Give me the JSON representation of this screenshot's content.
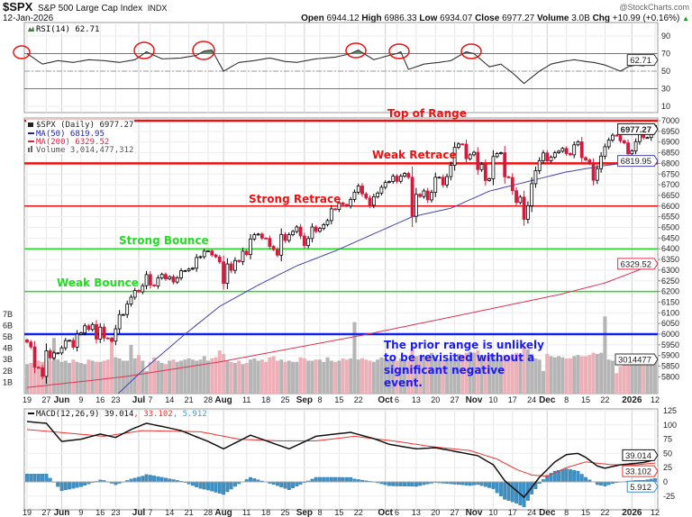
{
  "header": {
    "symbol": "$SPX",
    "name": "S&P 500 Large Cap Index",
    "exchange": "INDX",
    "copyright": "@StockCharts.com",
    "date": "12-Jan-2026",
    "open_label": "Open",
    "open": "6944.12",
    "high_label": "High",
    "high": "6986.33",
    "low_label": "Low",
    "low": "6934.07",
    "close_label": "Close",
    "close": "6977.27",
    "volume_label": "Volume",
    "volume": "3.0B",
    "chg_label": "Chg",
    "chg": "+10.99 (+0.16%)",
    "chg_arrow": "▲"
  },
  "legend": {
    "rsi": "RSI(14) 62.71",
    "price": "$SPX (Daily) 6977.27",
    "ma50": "MA(50) 6819.95",
    "ma200": "MA(200) 6329.52",
    "volume": "Volume 3,014,477,312",
    "macd_name": "MACD(12,26,9) 39.014",
    "macd_signal": ", 33.102",
    "macd_hist": ", 5.912"
  },
  "tags": {
    "rsi": "62.71",
    "price": "6977.27",
    "ma50": "6819.95",
    "ma200": "6329.52",
    "volume": "3014477",
    "macd": "39.014",
    "signal": "33.102",
    "hist": "5.912"
  },
  "levels": [
    {
      "label": "Top of Range",
      "value": 7000,
      "color": "#ee1111"
    },
    {
      "label": "Weak Retrace",
      "value": 6800,
      "color": "#ee1111"
    },
    {
      "label": "Strong Retrace",
      "value": 6600,
      "color": "#ee1111"
    },
    {
      "label": "Strong Bounce",
      "value": 6400,
      "color": "#22dd22"
    },
    {
      "label": "Weak Bounce",
      "value": 6200,
      "color": "#22dd22"
    },
    {
      "label": "",
      "value": 6000,
      "color": "#1122ee"
    }
  ],
  "note_lines": [
    "The prior range is unlikely",
    "to be revisited without a",
    "significant negative",
    "event."
  ],
  "colors": {
    "up": "#000000",
    "down": "#d6183c",
    "ma50": "#4444aa",
    "ma200": "#dd3355",
    "vol_up": "#b5b5b5",
    "vol_down": "#eeb0b8",
    "macd": "#111111",
    "signal": "#ee3333",
    "hist": "#3d8fc4",
    "rsi_fill": "#4a7a4a"
  },
  "chart_data": [
    {
      "type": "candlestick",
      "panel": "price",
      "ylim": [
        5775,
        7025
      ],
      "y_ticks": [
        5800,
        5850,
        5900,
        5950,
        6000,
        6050,
        6100,
        6150,
        6200,
        6250,
        6300,
        6350,
        6400,
        6450,
        6500,
        6550,
        6600,
        6650,
        6700,
        6750,
        6800,
        6850,
        6900,
        6950,
        7000
      ],
      "x_ticks": [
        {
          "label": "19",
          "day": 0
        },
        {
          "label": "27",
          "day": 5
        },
        {
          "label": "Jun",
          "day": 9,
          "bold": true
        },
        {
          "label": "9",
          "day": 14
        },
        {
          "label": "16",
          "day": 19
        },
        {
          "label": "23",
          "day": 23
        },
        {
          "label": "Jul",
          "day": 29,
          "bold": true
        },
        {
          "label": "7",
          "day": 32
        },
        {
          "label": "14",
          "day": 37
        },
        {
          "label": "21",
          "day": 42
        },
        {
          "label": "28",
          "day": 47
        },
        {
          "label": "Aug",
          "day": 51,
          "bold": true
        },
        {
          "label": "11",
          "day": 57
        },
        {
          "label": "18",
          "day": 62
        },
        {
          "label": "25",
          "day": 67
        },
        {
          "label": "Sep",
          "day": 72,
          "bold": true
        },
        {
          "label": "8",
          "day": 76
        },
        {
          "label": "15",
          "day": 81
        },
        {
          "label": "22",
          "day": 86
        },
        {
          "label": "Oct",
          "day": 93,
          "bold": true
        },
        {
          "label": "6",
          "day": 96
        },
        {
          "label": "13",
          "day": 101
        },
        {
          "label": "20",
          "day": 106
        },
        {
          "label": "27",
          "day": 111
        },
        {
          "label": "Nov",
          "day": 116,
          "bold": true
        },
        {
          "label": "10",
          "day": 121
        },
        {
          "label": "17",
          "day": 126
        },
        {
          "label": "24",
          "day": 131
        },
        {
          "label": "Dec",
          "day": 135,
          "bold": true
        },
        {
          "label": "8",
          "day": 140
        },
        {
          "label": "15",
          "day": 145
        },
        {
          "label": "22",
          "day": 150
        },
        {
          "label": "2026",
          "day": 157,
          "bold": true
        },
        {
          "label": "12",
          "day": 163
        }
      ],
      "close": [
        5963,
        5940,
        5845,
        5842,
        5802,
        5922,
        5889,
        5912,
        5912,
        5936,
        5970,
        5971,
        5939,
        6000,
        6006,
        6039,
        6022,
        6045,
        5977,
        6033,
        5982,
        5981,
        5967,
        6025,
        6092,
        6092,
        6141,
        6173,
        6205,
        6198,
        6227,
        6279,
        6230,
        6226,
        6263,
        6280,
        6259,
        6269,
        6244,
        6264,
        6297,
        6297,
        6305,
        6309,
        6359,
        6363,
        6389,
        6390,
        6371,
        6362,
        6339,
        6238,
        6329,
        6299,
        6345,
        6340,
        6389,
        6373,
        6446,
        6466,
        6469,
        6450,
        6449,
        6411,
        6396,
        6370,
        6467,
        6439,
        6466,
        6481,
        6502,
        6460,
        6415,
        6448,
        6502,
        6482,
        6495,
        6513,
        6532,
        6587,
        6584,
        6615,
        6607,
        6600,
        6631,
        6665,
        6694,
        6657,
        6638,
        6604,
        6644,
        6661,
        6688,
        6711,
        6715,
        6740,
        6716,
        6740,
        6753,
        6735,
        6552,
        6655,
        6645,
        6671,
        6629,
        6664,
        6735,
        6735,
        6699,
        6738,
        6791,
        6875,
        6891,
        6890,
        6822,
        6840,
        6852,
        6771,
        6796,
        6720,
        6728,
        6832,
        6846,
        6850,
        6737,
        6734,
        6672,
        6617,
        6642,
        6538,
        6602,
        6705,
        6766,
        6813,
        6849,
        6812,
        6829,
        6850,
        6857,
        6870,
        6846,
        6840,
        6887,
        6901,
        6827,
        6816,
        6800,
        6721,
        6775,
        6834,
        6878,
        6909,
        6932,
        6930,
        6906,
        6896,
        6845,
        6858,
        6902,
        6944,
        6921,
        6921,
        6966,
        6977.27
      ],
      "ma50": [
        [
          23,
          5710
        ],
        [
          30,
          5830
        ],
        [
          41,
          6000
        ],
        [
          50,
          6130
        ],
        [
          60,
          6230
        ],
        [
          70,
          6320
        ],
        [
          80,
          6390
        ],
        [
          90,
          6470
        ],
        [
          100,
          6550
        ],
        [
          110,
          6590
        ],
        [
          120,
          6670
        ],
        [
          130,
          6715
        ],
        [
          140,
          6760
        ],
        [
          150,
          6790
        ],
        [
          163,
          6819.95
        ]
      ],
      "ma200": [
        [
          0,
          5750
        ],
        [
          25,
          5800
        ],
        [
          50,
          5870
        ],
        [
          87,
          5995
        ],
        [
          110,
          6080
        ],
        [
          138,
          6185
        ],
        [
          150,
          6240
        ],
        [
          163,
          6329.52
        ]
      ]
    },
    {
      "type": "bar",
      "panel": "volume",
      "unit": "B",
      "y_ticks": [
        "1B",
        "2B",
        "3B",
        "4B",
        "5B",
        "6B",
        "7B"
      ],
      "values": [
        2.6,
        2.7,
        3.0,
        2.9,
        2.8,
        3.1,
        2.9,
        4.9,
        3.0,
        2.8,
        2.9,
        2.7,
        3.0,
        2.8,
        2.7,
        2.6,
        3.0,
        2.9,
        2.8,
        2.8,
        2.9,
        3.0,
        4.8,
        3.2,
        3.1,
        2.9,
        2.9,
        4.3,
        3.1,
        3.4,
        2.9,
        2.0,
        2.8,
        3.2,
        2.9,
        2.7,
        2.6,
        2.9,
        3.0,
        2.8,
        2.9,
        3.0,
        3.1,
        3.0,
        2.9,
        3.0,
        3.3,
        2.9,
        3.1,
        3.2,
        3.8,
        3.5,
        2.9,
        2.8,
        2.7,
        2.9,
        2.6,
        2.7,
        3.0,
        3.1,
        2.9,
        3.0,
        2.8,
        3.2,
        3.3,
        2.9,
        3.0,
        2.8,
        2.9,
        2.8,
        2.8,
        3.2,
        3.1,
        2.9,
        2.9,
        3.0,
        3.0,
        2.8,
        3.2,
        2.9,
        2.8,
        2.9,
        3.1,
        3.0,
        3.1,
        6.3,
        3.0,
        3.1,
        3.0,
        2.9,
        2.8,
        3.0,
        3.2,
        3.1,
        3.0,
        3.0,
        2.9,
        3.1,
        3.0,
        2.9,
        4.0,
        3.3,
        3.4,
        3.3,
        3.1,
        3.6,
        3.3,
        3.0,
        2.9,
        3.0,
        3.2,
        3.1,
        3.5,
        3.4,
        3.6,
        3.7,
        3.6,
        3.8,
        3.4,
        3.3,
        3.5,
        3.3,
        3.1,
        3.0,
        3.4,
        3.3,
        3.5,
        3.6,
        3.4,
        4.2,
        3.9,
        3.5,
        3.1,
        3.0,
        2.0,
        3.5,
        3.3,
        3.2,
        3.3,
        3.2,
        3.1,
        3.1,
        3.3,
        3.4,
        3.3,
        3.3,
        3.4,
        3.6,
        3.5,
        3.6,
        6.8,
        3.0,
        2.9,
        1.8,
        2.4,
        2.6,
        2.8,
        3.3,
        3.4,
        3.2,
        3.0,
        3.1,
        3.0,
        3.014
      ]
    },
    {
      "type": "line",
      "panel": "rsi",
      "ylim": [
        0,
        100
      ],
      "y_ticks": [
        10,
        30,
        50,
        70,
        90
      ],
      "ref_lines": [
        30,
        50,
        70
      ],
      "points": [
        [
          0,
          70
        ],
        [
          4,
          58
        ],
        [
          8,
          62
        ],
        [
          12,
          60
        ],
        [
          16,
          63
        ],
        [
          20,
          62
        ],
        [
          24,
          60
        ],
        [
          28,
          63
        ],
        [
          31,
          72
        ],
        [
          35,
          64
        ],
        [
          40,
          65
        ],
        [
          44,
          68
        ],
        [
          46,
          73
        ],
        [
          48,
          74
        ],
        [
          51,
          50
        ],
        [
          55,
          60
        ],
        [
          59,
          62
        ],
        [
          63,
          65
        ],
        [
          67,
          61
        ],
        [
          70,
          60
        ],
        [
          75,
          64
        ],
        [
          80,
          66
        ],
        [
          84,
          70
        ],
        [
          86,
          74
        ],
        [
          90,
          63
        ],
        [
          94,
          68
        ],
        [
          96,
          70
        ],
        [
          97,
          72
        ],
        [
          99,
          52
        ],
        [
          103,
          58
        ],
        [
          107,
          60
        ],
        [
          110,
          62
        ],
        [
          114,
          72
        ],
        [
          116,
          70
        ],
        [
          120,
          55
        ],
        [
          123,
          58
        ],
        [
          126,
          48
        ],
        [
          129,
          36
        ],
        [
          133,
          50
        ],
        [
          136,
          58
        ],
        [
          139,
          61
        ],
        [
          142,
          63
        ],
        [
          145,
          61
        ],
        [
          147,
          60
        ],
        [
          150,
          57
        ],
        [
          154,
          50
        ],
        [
          156,
          55
        ],
        [
          158,
          57
        ],
        [
          160,
          56
        ],
        [
          163,
          62.71
        ]
      ]
    },
    {
      "type": "line",
      "panel": "macd",
      "ylim": [
        -40,
        135
      ],
      "y_ticks": [
        -25,
        0,
        25,
        50,
        75,
        100,
        125
      ],
      "macd": [
        [
          0,
          106
        ],
        [
          3,
          104
        ],
        [
          5,
          103
        ],
        [
          9,
          71
        ],
        [
          14,
          75
        ],
        [
          19,
          84
        ],
        [
          23,
          78
        ],
        [
          27,
          92
        ],
        [
          31,
          103
        ],
        [
          36,
          96
        ],
        [
          40,
          90
        ],
        [
          47,
          71
        ],
        [
          51,
          58
        ],
        [
          58,
          82
        ],
        [
          63,
          70
        ],
        [
          68,
          58
        ],
        [
          75,
          80
        ],
        [
          80,
          84
        ],
        [
          84,
          87
        ],
        [
          90,
          76
        ],
        [
          94,
          66
        ],
        [
          101,
          58
        ],
        [
          106,
          60
        ],
        [
          110,
          55
        ],
        [
          117,
          46
        ],
        [
          121,
          30
        ],
        [
          124,
          2
        ],
        [
          129,
          -27
        ],
        [
          133,
          8
        ],
        [
          137,
          35
        ],
        [
          140,
          48
        ],
        [
          143,
          50
        ],
        [
          145,
          43
        ],
        [
          148,
          28
        ],
        [
          150,
          24
        ],
        [
          154,
          30
        ],
        [
          157,
          32
        ],
        [
          160,
          34
        ],
        [
          163,
          39.014
        ]
      ],
      "signal": [
        [
          0,
          92
        ],
        [
          10,
          86
        ],
        [
          20,
          80
        ],
        [
          30,
          90
        ],
        [
          45,
          88
        ],
        [
          55,
          75
        ],
        [
          65,
          72
        ],
        [
          75,
          72
        ],
        [
          85,
          80
        ],
        [
          95,
          72
        ],
        [
          105,
          62
        ],
        [
          115,
          55
        ],
        [
          122,
          40
        ],
        [
          127,
          22
        ],
        [
          131,
          12
        ],
        [
          135,
          10
        ],
        [
          140,
          25
        ],
        [
          145,
          35
        ],
        [
          152,
          30
        ],
        [
          158,
          30
        ],
        [
          163,
          33.102
        ]
      ]
    }
  ]
}
